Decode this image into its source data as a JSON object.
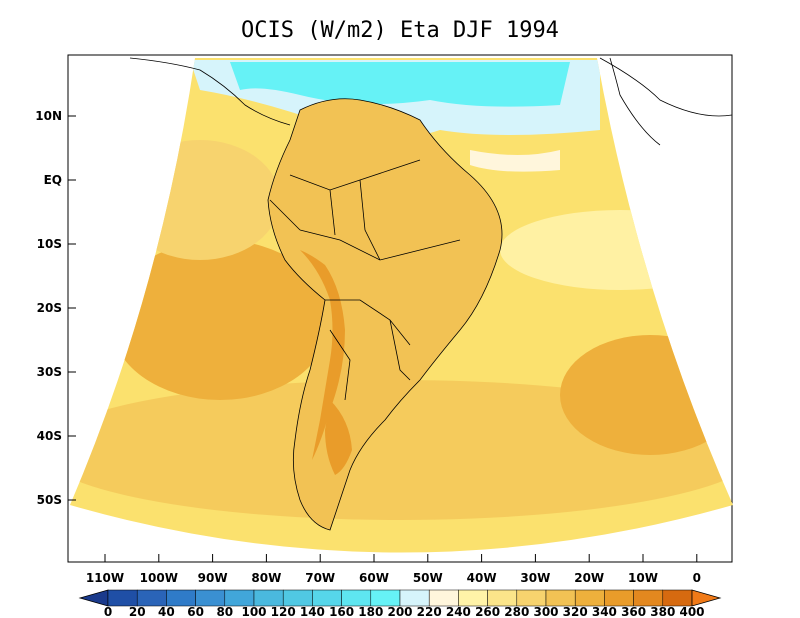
{
  "title": "OCIS (W/m2) Eta DJF 1994",
  "lat_ticks": [
    "10N",
    "EQ",
    "10S",
    "20S",
    "30S",
    "40S",
    "50S"
  ],
  "lon_ticks": [
    "110W",
    "100W",
    "90W",
    "80W",
    "70W",
    "60W",
    "50W",
    "40W",
    "30W",
    "20W",
    "10W",
    "0"
  ],
  "colorbar": {
    "labels": [
      "0",
      "20",
      "40",
      "60",
      "80",
      "100",
      "120",
      "140",
      "160",
      "180",
      "200",
      "220",
      "240",
      "260",
      "280",
      "300",
      "320",
      "340",
      "360",
      "380",
      "400"
    ],
    "colors": [
      "#1a3a8c",
      "#1f4fa6",
      "#2a64b8",
      "#2f7bc8",
      "#3a90d2",
      "#41a6da",
      "#4ab9de",
      "#50c8e3",
      "#56d6ea",
      "#5ee6f0",
      "#66f2f6",
      "#d6f4fb",
      "#fff6dc",
      "#fff3a8",
      "#fbe58a",
      "#f7d36e",
      "#f2c254",
      "#eeb03c",
      "#e99c2a",
      "#e3881f",
      "#d66a10",
      "#f07a18"
    ]
  },
  "colors": {
    "ocean_band": "#fbe16e",
    "land_band": "#f2c254",
    "max_band": "#e99c2a",
    "min_band": "#66f2f6"
  }
}
